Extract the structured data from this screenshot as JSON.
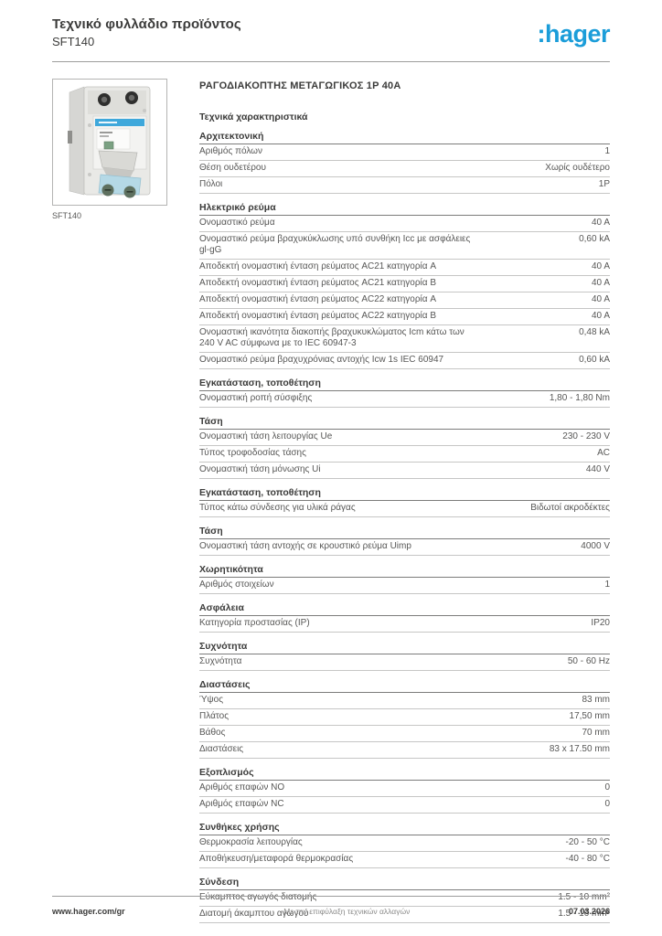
{
  "header": {
    "title": "Τεχνικό φυλλάδιο προϊόντος",
    "product_ref": "SFT140",
    "logo_text": ":hager",
    "brand_color": "#1b9dd9"
  },
  "product": {
    "title": "ΡΑΓΟΔΙΑΚΟΠΤΗΣ ΜΕΤΑΓΩΓΙΚΟΣ 1P 40A",
    "specs_heading": "Τεχνικά χαρακτηριστικά",
    "caption": "SFT140",
    "image_description": "modular-din-rail-changeover-switch-photo"
  },
  "sections": [
    {
      "heading": "Αρχιτεκτονική",
      "rows": [
        {
          "label": "Αριθμός πόλων",
          "value": "1"
        },
        {
          "label": "Θέση ουδετέρου",
          "value": "Χωρίς ουδέτερο"
        },
        {
          "label": "Πόλοι",
          "value": "1P"
        }
      ]
    },
    {
      "heading": "Ηλεκτρικό ρεύμα",
      "rows": [
        {
          "label": "Ονομαστικό ρεύμα",
          "value": "40 A"
        },
        {
          "label": "Ονομαστικό ρεύμα βραχυκύκλωσης υπό συνθήκη Icc με ασφάλειες gl-gG",
          "value": "0,60 kA"
        },
        {
          "label": "Αποδεκτή ονομαστική ένταση ρεύματος AC21 κατηγορία A",
          "value": "40 A"
        },
        {
          "label": "Αποδεκτή ονομαστική ένταση ρεύματος AC21 κατηγορία B",
          "value": "40 A"
        },
        {
          "label": "Αποδεκτή ονομαστική ένταση ρεύματος AC22 κατηγορία A",
          "value": "40 A"
        },
        {
          "label": "Αποδεκτή ονομαστική ένταση ρεύματος AC22 κατηγορία B",
          "value": "40 A"
        },
        {
          "label": "Ονομαστική ικανότητα διακοπής βραχυκυκλώματος Icm κάτω των 240 V AC σύμφωνα με το IEC 60947-3",
          "value": "0,48 kA"
        },
        {
          "label": "Ονομαστικό ρεύμα βραχυχρόνιας αντοχής Icw 1s IEC 60947",
          "value": "0,60 kA"
        }
      ]
    },
    {
      "heading": "Εγκατάσταση, τοποθέτηση",
      "rows": [
        {
          "label": "Ονομαστική ροπή σύσφιξης",
          "value": "1,80 - 1,80 Nm"
        }
      ]
    },
    {
      "heading": "Τάση",
      "rows": [
        {
          "label": "Ονομαστική τάση λειτουργίας Ue",
          "value": "230 - 230 V"
        },
        {
          "label": "Τύπος τροφοδοσίας τάσης",
          "value": "AC"
        },
        {
          "label": "Ονομαστική τάση μόνωσης Ui",
          "value": "440 V"
        }
      ]
    },
    {
      "heading": "Εγκατάσταση, τοποθέτηση",
      "rows": [
        {
          "label": "Τύπος κάτω σύνδεσης για υλικά ράγας",
          "value": "Βιδωτοί ακροδέκτες"
        }
      ]
    },
    {
      "heading": "Τάση",
      "rows": [
        {
          "label": "Ονομαστική τάση αντοχής σε κρουστικό ρεύμα Uimp",
          "value": "4000 V"
        }
      ]
    },
    {
      "heading": "Χωρητικότητα",
      "rows": [
        {
          "label": "Αριθμός στοιχείων",
          "value": "1"
        }
      ]
    },
    {
      "heading": "Ασφάλεια",
      "rows": [
        {
          "label": "Κατηγορία προστασίας (IP)",
          "value": "IP20"
        }
      ]
    },
    {
      "heading": "Συχνότητα",
      "rows": [
        {
          "label": "Συχνότητα",
          "value": "50 - 60 Hz"
        }
      ]
    },
    {
      "heading": "Διαστάσεις",
      "rows": [
        {
          "label": "Ύψος",
          "value": "83 mm"
        },
        {
          "label": "Πλάτος",
          "value": "17,50 mm"
        },
        {
          "label": "Βάθος",
          "value": "70 mm"
        },
        {
          "label": "Διαστάσεις",
          "value": "83 x 17.50 mm"
        }
      ]
    },
    {
      "heading": "Εξοπλισμός",
      "rows": [
        {
          "label": "Αριθμός επαφών NO",
          "value": "0"
        },
        {
          "label": "Αριθμός επαφών NC",
          "value": "0"
        }
      ]
    },
    {
      "heading": "Συνθήκες χρήσης",
      "rows": [
        {
          "label": "Θερμοκρασία λειτουργίας",
          "value": "-20 - 50 °C"
        },
        {
          "label": "Αποθήκευση/μεταφορά θερμοκρασίας",
          "value": "-40 - 80 °C"
        }
      ]
    },
    {
      "heading": "Σύνδεση",
      "rows": [
        {
          "label": "Εύκαμπτος αγωγός διατομής",
          "value": "1.5 - 10 mm²"
        },
        {
          "label": "Διατομή άκαμπτου αγωγού",
          "value": "1.5 - 16 mm²"
        }
      ]
    }
  ],
  "footer": {
    "website": "www.hager.com/gr",
    "disclaimer": "Με την επιφύλαξη τεχνικών αλλαγών",
    "date": "07.03.2026"
  }
}
